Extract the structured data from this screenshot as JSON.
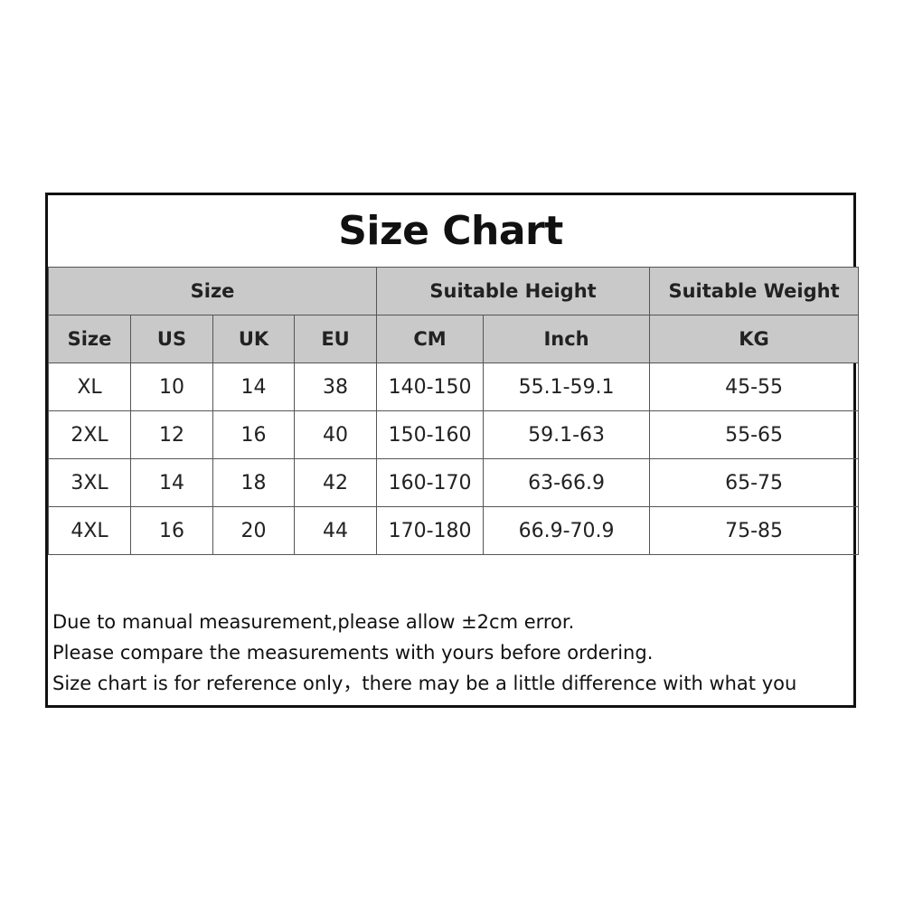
{
  "title": "Size Chart",
  "group_headers": [
    {
      "label": "Size",
      "span": 4
    },
    {
      "label": "Suitable Height",
      "span": 2
    },
    {
      "label": "Suitable Weight",
      "span": 1
    }
  ],
  "columns": [
    "Size",
    "US",
    "UK",
    "EU",
    "CM",
    "Inch",
    "KG"
  ],
  "rows": [
    [
      "XL",
      "10",
      "14",
      "38",
      "140-150",
      "55.1-59.1",
      "45-55"
    ],
    [
      "2XL",
      "12",
      "16",
      "40",
      "150-160",
      "59.1-63",
      "55-65"
    ],
    [
      "3XL",
      "14",
      "18",
      "42",
      "160-170",
      "63-66.9",
      "65-75"
    ],
    [
      "4XL",
      "16",
      "20",
      "44",
      "170-180",
      "66.9-70.9",
      "75-85"
    ]
  ],
  "notes": [
    "Due to manual measurement,please allow ±2cm error.",
    "Please compare the measurements with yours before ordering.",
    "Size chart is for reference only，there may be a little difference with what you"
  ],
  "colors": {
    "header_bg": "#c9c9c9",
    "border": "#111111"
  }
}
